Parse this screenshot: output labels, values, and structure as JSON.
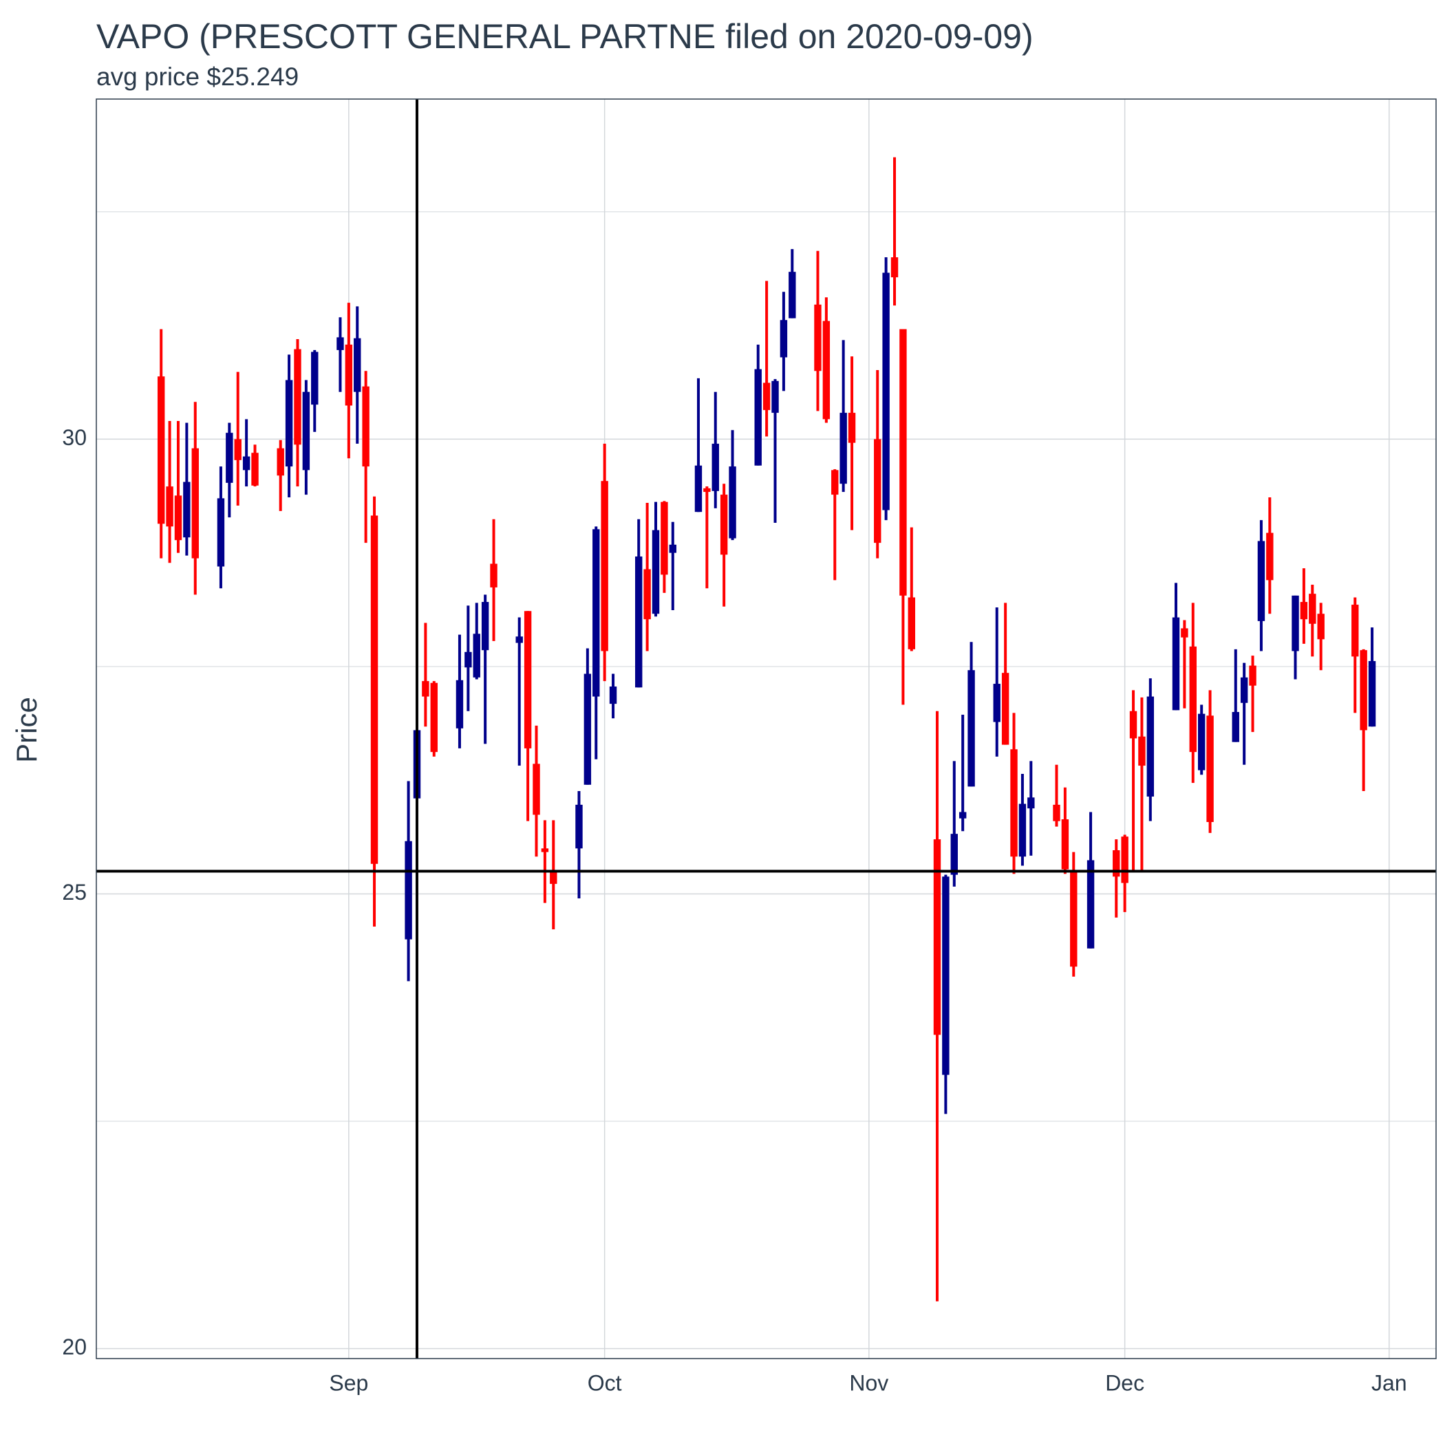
{
  "chart_data": {
    "type": "candlestick",
    "title": "VAPO (PRESCOTT GENERAL PARTNE filed on 2020-09-09)",
    "subtitle": "avg price $25.249",
    "y_label": "Price",
    "up_color": "#00008B",
    "down_color": "#FF0000",
    "x": [
      223,
      224,
      225,
      226,
      227,
      230,
      231,
      232,
      233,
      234,
      237,
      238,
      239,
      240,
      241,
      244,
      245,
      246,
      247,
      248,
      252,
      253,
      254,
      255,
      258,
      259,
      260,
      261,
      262,
      265,
      266,
      267,
      268,
      269,
      272,
      273,
      274,
      275,
      276,
      279,
      280,
      281,
      282,
      283,
      286,
      287,
      288,
      289,
      290,
      293,
      294,
      295,
      296,
      297,
      300,
      301,
      302,
      303,
      304,
      307,
      308,
      309,
      310,
      311,
      314,
      315,
      316,
      317,
      318,
      321,
      322,
      323,
      324,
      325,
      328,
      329,
      330,
      332,
      335,
      336,
      337,
      338,
      339,
      342,
      343,
      344,
      345,
      346,
      349,
      350,
      351,
      352,
      353,
      356,
      357,
      358,
      359,
      363,
      364,
      365
    ],
    "open": [
      30.69,
      29.48,
      29.38,
      28.92,
      29.9,
      28.6,
      29.52,
      30.0,
      29.66,
      29.85,
      29.9,
      29.7,
      30.99,
      29.66,
      30.38,
      30.98,
      31.04,
      30.52,
      30.58,
      29.16,
      24.5,
      26.05,
      27.34,
      27.32,
      26.82,
      27.49,
      27.38,
      27.68,
      28.63,
      27.76,
      28.11,
      26.43,
      25.5,
      25.25,
      25.5,
      26.2,
      27.17,
      29.54,
      27.09,
      27.27,
      28.57,
      28.08,
      29.31,
      28.75,
      29.2,
      29.46,
      29.43,
      29.39,
      28.91,
      29.71,
      30.62,
      30.29,
      30.9,
      31.33,
      31.48,
      31.3,
      29.66,
      29.51,
      30.29,
      30.0,
      29.22,
      32.0,
      31.21,
      28.26,
      25.6,
      23.01,
      25.21,
      25.83,
      26.18,
      26.89,
      27.43,
      26.59,
      25.41,
      25.94,
      25.98,
      25.82,
      25.25,
      24.4,
      25.48,
      25.63,
      27.01,
      26.73,
      26.07,
      27.02,
      27.92,
      27.72,
      26.36,
      26.96,
      26.67,
      27.1,
      27.51,
      28.0,
      28.97,
      27.67,
      28.21,
      28.3,
      28.08,
      28.18,
      27.68,
      26.84
    ],
    "high": [
      31.21,
      30.2,
      30.2,
      30.18,
      30.41,
      29.7,
      30.18,
      30.74,
      30.22,
      29.94,
      29.99,
      30.93,
      31.1,
      30.65,
      30.98,
      31.34,
      31.5,
      31.46,
      30.75,
      29.37,
      26.24,
      26.81,
      27.98,
      27.34,
      27.85,
      28.17,
      28.2,
      28.29,
      29.12,
      28.04,
      28.11,
      26.85,
      25.81,
      25.81,
      26.13,
      27.7,
      29.04,
      29.95,
      27.42,
      29.12,
      29.3,
      29.31,
      29.32,
      29.09,
      30.67,
      29.48,
      30.52,
      29.51,
      30.1,
      31.04,
      31.74,
      30.66,
      31.62,
      32.09,
      32.07,
      31.56,
      29.67,
      31.09,
      30.91,
      30.76,
      32.0,
      33.1,
      31.21,
      29.03,
      27.01,
      25.21,
      26.46,
      26.97,
      27.77,
      28.15,
      28.2,
      26.99,
      26.32,
      26.46,
      26.42,
      26.17,
      25.46,
      25.9,
      25.6,
      25.65,
      27.24,
      27.16,
      27.37,
      28.42,
      28.01,
      28.2,
      27.08,
      27.24,
      27.69,
      27.54,
      27.62,
      29.11,
      29.36,
      28.28,
      28.58,
      28.4,
      28.2,
      28.26,
      27.69,
      27.93
    ],
    "low": [
      28.69,
      28.64,
      28.75,
      28.72,
      28.29,
      28.36,
      29.14,
      29.27,
      29.48,
      29.48,
      29.21,
      29.36,
      29.48,
      29.39,
      30.08,
      30.52,
      29.79,
      29.95,
      28.86,
      24.64,
      24.04,
      26.04,
      26.84,
      26.51,
      26.6,
      27.01,
      27.36,
      26.65,
      27.78,
      26.41,
      25.8,
      25.41,
      24.9,
      24.61,
      24.95,
      26.2,
      26.48,
      27.34,
      26.93,
      27.27,
      27.67,
      28.05,
      28.31,
      28.12,
      29.2,
      28.36,
      29.24,
      28.16,
      28.89,
      29.71,
      30.03,
      29.08,
      30.53,
      31.33,
      30.31,
      30.18,
      28.45,
      29.42,
      29.0,
      28.69,
      29.11,
      31.47,
      27.08,
      27.67,
      20.52,
      22.58,
      25.08,
      25.69,
      26.18,
      26.51,
      26.64,
      25.22,
      25.31,
      25.42,
      25.74,
      25.22,
      24.09,
      24.4,
      24.74,
      24.8,
      25.24,
      25.24,
      25.8,
      27.02,
      27.04,
      26.22,
      26.31,
      25.67,
      26.67,
      26.42,
      26.78,
      27.67,
      28.08,
      27.36,
      27.75,
      27.61,
      27.46,
      26.99,
      26.13,
      26.84
    ],
    "close": [
      29.07,
      29.04,
      28.89,
      29.53,
      28.69,
      29.35,
      30.07,
      29.77,
      29.81,
      29.49,
      29.6,
      30.65,
      29.94,
      30.52,
      30.96,
      31.12,
      30.37,
      31.11,
      29.7,
      25.33,
      25.58,
      26.8,
      27.17,
      26.56,
      27.35,
      27.66,
      27.86,
      28.21,
      28.37,
      27.83,
      26.6,
      25.87,
      25.46,
      25.11,
      25.98,
      27.42,
      29.01,
      27.67,
      27.28,
      28.71,
      28.02,
      29.0,
      28.51,
      28.84,
      29.71,
      29.42,
      29.95,
      28.73,
      29.7,
      30.77,
      30.32,
      30.64,
      31.31,
      31.84,
      30.75,
      30.22,
      29.39,
      30.29,
      29.96,
      28.86,
      31.83,
      31.78,
      28.28,
      27.69,
      23.45,
      25.19,
      25.66,
      25.9,
      27.46,
      27.31,
      26.64,
      25.41,
      25.99,
      26.06,
      25.8,
      25.27,
      24.2,
      25.37,
      25.19,
      25.12,
      26.71,
      26.41,
      27.17,
      28.04,
      27.82,
      26.56,
      26.98,
      25.79,
      27.0,
      27.38,
      27.29,
      28.88,
      28.45,
      28.28,
      28.02,
      27.97,
      27.8,
      27.61,
      26.8,
      27.56
    ],
    "xlim": [
      215.4,
      372.5
    ],
    "ylim": [
      19.89,
      33.74
    ],
    "xticks": [
      {
        "value": 245,
        "label": "Sep"
      },
      {
        "value": 275,
        "label": "Oct"
      },
      {
        "value": 306,
        "label": "Nov"
      },
      {
        "value": 336,
        "label": "Dec"
      },
      {
        "value": 367,
        "label": "Jan"
      }
    ],
    "yticks": [
      20,
      25,
      30
    ],
    "y_minor_grid": [
      22.5,
      27.5,
      32.5
    ],
    "grid": true,
    "vline_x": 253,
    "hline_y": 25.249
  }
}
